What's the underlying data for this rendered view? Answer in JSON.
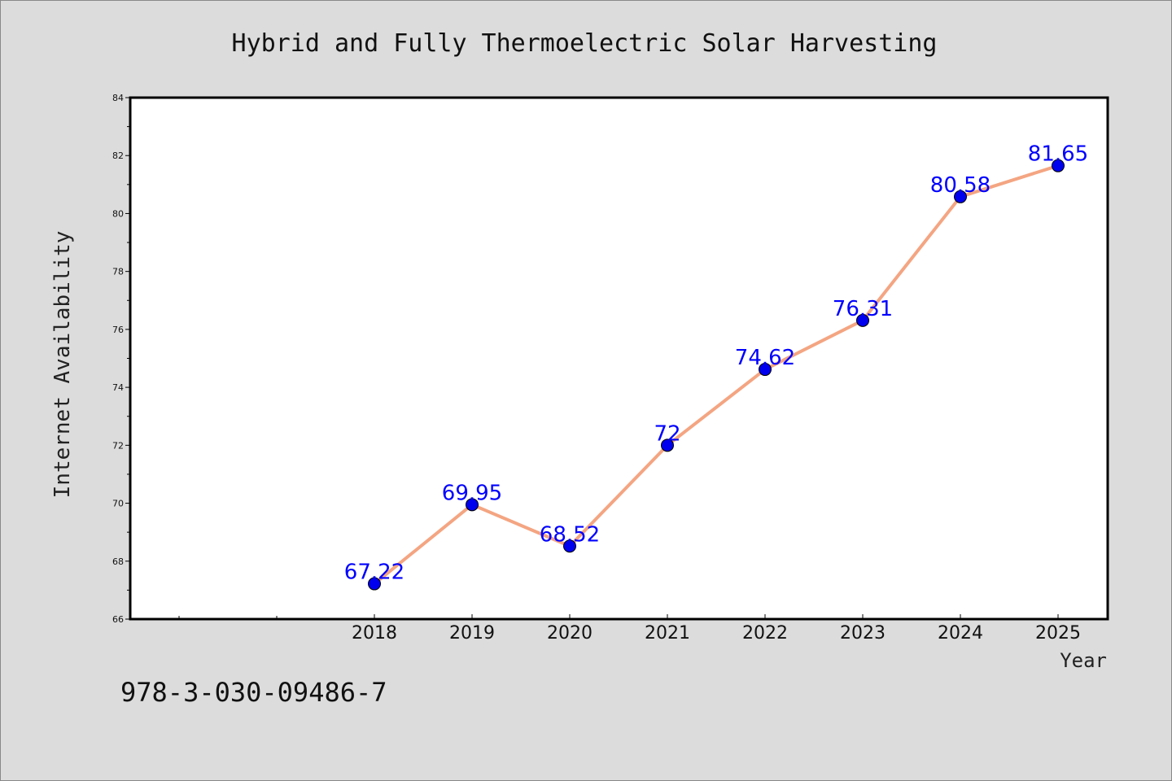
{
  "footer_code": "978-3-030-09486-7",
  "colors": {
    "background": "#dcdcdc",
    "plot_background": "#ffffff",
    "line": "#f4a582",
    "marker": "#0000ee",
    "label": "#0000ff"
  },
  "chart_data": {
    "type": "line",
    "title": "Hybrid and Fully Thermoelectric Solar Harvesting",
    "xlabel": "Year",
    "ylabel": "Internet Availability",
    "x": [
      "2018",
      "2019",
      "2020",
      "2021",
      "2022",
      "2023",
      "2024",
      "2025"
    ],
    "series": [
      {
        "values": [
          67.22,
          69.95,
          68.52,
          72,
          74.62,
          76.31,
          80.58,
          81.65
        ],
        "labels": [
          "67.22",
          "69.95",
          "68.52",
          "72",
          "74.62",
          "76.31",
          "80.58",
          "81.65"
        ]
      }
    ],
    "ylim": [
      66,
      84
    ],
    "yticks": [
      "66",
      "68",
      "70",
      "72",
      "74",
      "76",
      "78",
      "80",
      "82",
      "84"
    ],
    "grid": false,
    "legend": "none"
  }
}
